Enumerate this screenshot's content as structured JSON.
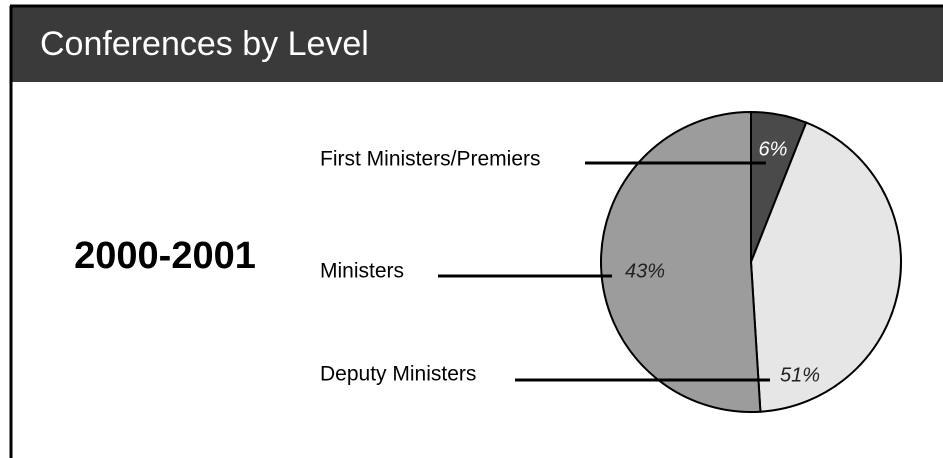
{
  "chart_data": {
    "type": "pie",
    "title": "Conferences by Level",
    "subtitle": "2000-2001",
    "categories": [
      "First Ministers/Premiers",
      "Ministers",
      "Deputy Ministers"
    ],
    "values": [
      6,
      43,
      51
    ],
    "value_labels": [
      "6%",
      "43%",
      "51%"
    ],
    "colors": [
      "#4a4a4a",
      "#e6e6e6",
      "#9c9c9c"
    ]
  }
}
